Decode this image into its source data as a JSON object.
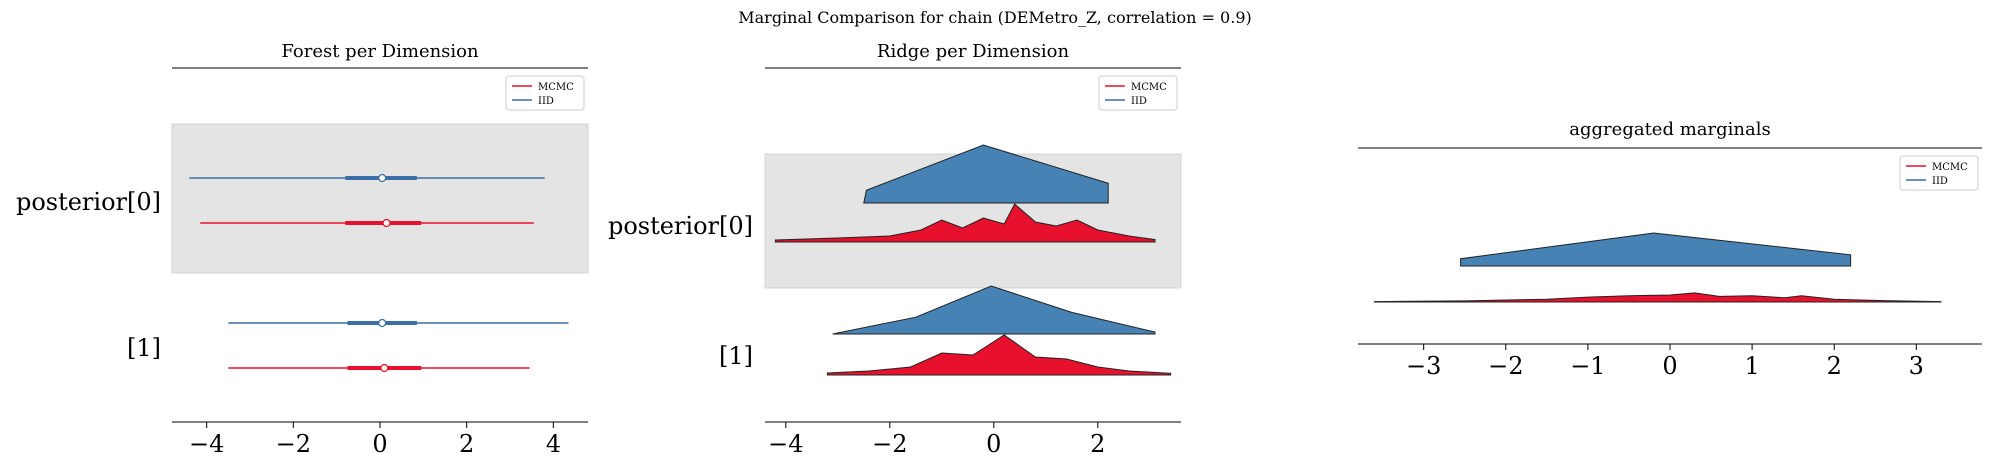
{
  "suptitle": "Marginal Comparison for chain (DEMetro_Z, correlation = 0.9)",
  "colors": {
    "mcmc": "#e8112d",
    "iid": "#3b6fa6",
    "iid_fill": "#4682b4",
    "band": "#e4e4e4"
  },
  "legend": {
    "mcmc": "MCMC",
    "iid": "IID"
  },
  "chart_data": [
    {
      "type": "forest",
      "title": "Forest per Dimension",
      "legend_position": "top-right",
      "xlim": [
        -4.8,
        4.8
      ],
      "xticks": [
        -4,
        -2,
        0,
        2,
        4
      ],
      "xtick_labels": [
        "−4",
        "−2",
        "0",
        "2",
        "4"
      ],
      "rows": [
        {
          "label": "posterior[0]",
          "shaded": true,
          "series": [
            {
              "name": "IID",
              "hdi_low": -4.4,
              "hdi_high": 3.8,
              "iqr_low": -0.8,
              "iqr_high": 0.85,
              "median": 0.05
            },
            {
              "name": "MCMC",
              "hdi_low": -4.15,
              "hdi_high": 3.55,
              "iqr_low": -0.8,
              "iqr_high": 0.95,
              "median": 0.15
            }
          ]
        },
        {
          "label": "[1]",
          "shaded": false,
          "series": [
            {
              "name": "IID",
              "hdi_low": -3.5,
              "hdi_high": 4.35,
              "iqr_low": -0.75,
              "iqr_high": 0.85,
              "median": 0.05
            },
            {
              "name": "MCMC",
              "hdi_low": -3.5,
              "hdi_high": 3.45,
              "iqr_low": -0.75,
              "iqr_high": 0.95,
              "median": 0.1
            }
          ]
        }
      ]
    },
    {
      "type": "ridge",
      "title": "Ridge per Dimension",
      "legend_position": "top-right",
      "xlim": [
        -4.4,
        3.6
      ],
      "xticks": [
        -4,
        -2,
        0,
        2
      ],
      "xtick_labels": [
        "−4",
        "−2",
        "0",
        "2"
      ],
      "rows": [
        {
          "label": "posterior[0]",
          "shaded": true,
          "series": [
            {
              "name": "IID",
              "x": [
                -2.5,
                -2.45,
                -0.2,
                2.2,
                2.2
              ],
              "y": [
                0.0,
                0.22,
                1.0,
                0.34,
                0.0
              ]
            },
            {
              "name": "MCMC",
              "x": [
                -4.2,
                -3.0,
                -2.0,
                -1.4,
                -1.0,
                -0.6,
                -0.2,
                0.2,
                0.4,
                0.8,
                1.2,
                1.6,
                2.0,
                2.6,
                3.1
              ],
              "y": [
                0.05,
                0.1,
                0.15,
                0.3,
                0.55,
                0.35,
                0.6,
                0.45,
                0.95,
                0.5,
                0.4,
                0.55,
                0.3,
                0.15,
                0.06
              ]
            }
          ]
        },
        {
          "label": "[1]",
          "shaded": false,
          "series": [
            {
              "name": "IID",
              "x": [
                -3.1,
                -1.5,
                -0.05,
                1.5,
                3.1
              ],
              "y": [
                0.0,
                0.35,
                1.0,
                0.45,
                0.04
              ]
            },
            {
              "name": "MCMC",
              "x": [
                -3.2,
                -2.4,
                -1.6,
                -1.0,
                -0.4,
                0.2,
                0.8,
                1.4,
                2.0,
                2.6,
                3.4
              ],
              "y": [
                0.05,
                0.1,
                0.2,
                0.55,
                0.5,
                1.0,
                0.45,
                0.4,
                0.2,
                0.1,
                0.04
              ]
            }
          ]
        }
      ]
    },
    {
      "type": "ridge",
      "title": "aggregated marginals",
      "legend_position": "top-right",
      "xlim": [
        -3.8,
        3.8
      ],
      "xticks": [
        -3,
        -2,
        -1,
        0,
        1,
        2,
        3
      ],
      "xtick_labels": [
        "−3",
        "−2",
        "−1",
        "0",
        "1",
        "2",
        "3"
      ],
      "series": [
        {
          "name": "IID",
          "x": [
            -2.55,
            -2.55,
            -0.2,
            2.2,
            2.2
          ],
          "y": [
            0.0,
            0.22,
            1.0,
            0.34,
            0.0
          ]
        },
        {
          "name": "MCMC",
          "x": [
            -3.6,
            -2.5,
            -1.5,
            -1.0,
            -0.5,
            0.0,
            0.3,
            0.6,
            1.0,
            1.4,
            1.6,
            2.0,
            2.6,
            3.3
          ],
          "y": [
            0.03,
            0.08,
            0.2,
            0.35,
            0.45,
            0.5,
            0.65,
            0.4,
            0.45,
            0.3,
            0.45,
            0.2,
            0.1,
            0.03
          ]
        }
      ]
    }
  ]
}
